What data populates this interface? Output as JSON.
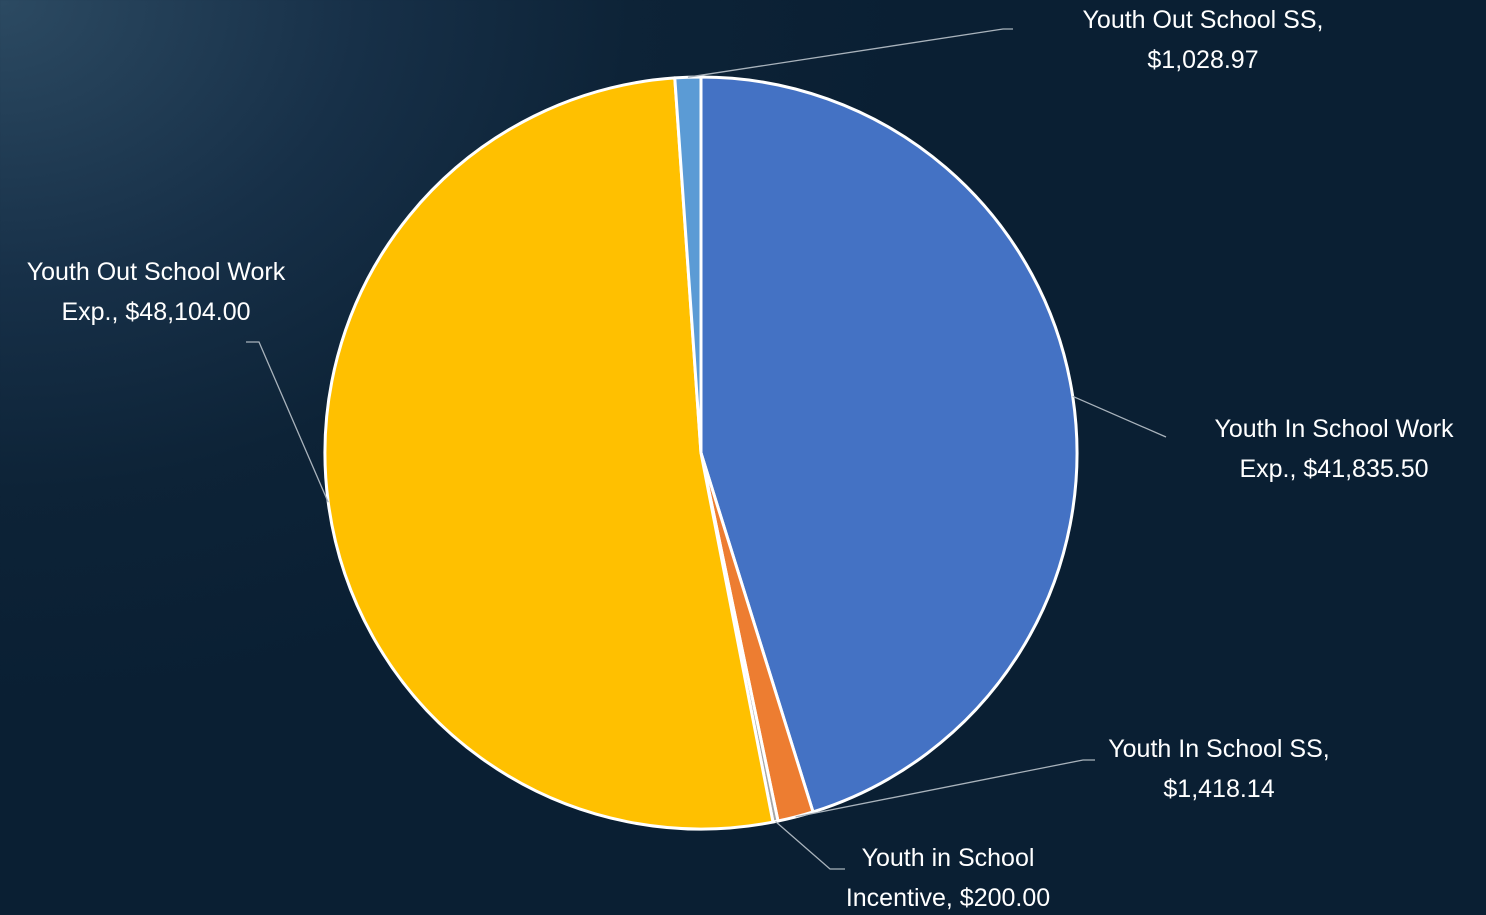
{
  "chart_data": {
    "type": "pie",
    "title": "",
    "slices": [
      {
        "name": "Youth In School Work Exp.",
        "value": 41835.5,
        "value_label": "$41,835.50",
        "color": "#4472c4",
        "label_lines": [
          "Youth In School Work",
          "Exp.,  $41,835.50"
        ]
      },
      {
        "name": "Youth In School SS",
        "value": 1418.14,
        "value_label": "$1,418.14",
        "color": "#ed7d31",
        "label_lines": [
          "Youth In School SS,",
          "$1,418.14"
        ]
      },
      {
        "name": "Youth in School Incentive",
        "value": 200.0,
        "value_label": "$200.00",
        "color": "#a5a5a5",
        "label_lines": [
          "Youth in School",
          "Incentive,  $200.00"
        ]
      },
      {
        "name": "Youth Out School Work Exp.",
        "value": 48104.0,
        "value_label": "$48,104.00",
        "color": "#ffc000",
        "label_lines": [
          "Youth Out School Work",
          "Exp.,  $48,104.00"
        ]
      },
      {
        "name": "Youth Out School SS",
        "value": 1028.97,
        "value_label": "$1,028.97",
        "color": "#5b9bd5",
        "label_lines": [
          "Youth Out School SS,",
          "$1,028.97"
        ]
      }
    ],
    "start_angle": "12 o'clock",
    "direction": "clockwise",
    "legend": "none",
    "data_labels": "outside with leader lines"
  }
}
